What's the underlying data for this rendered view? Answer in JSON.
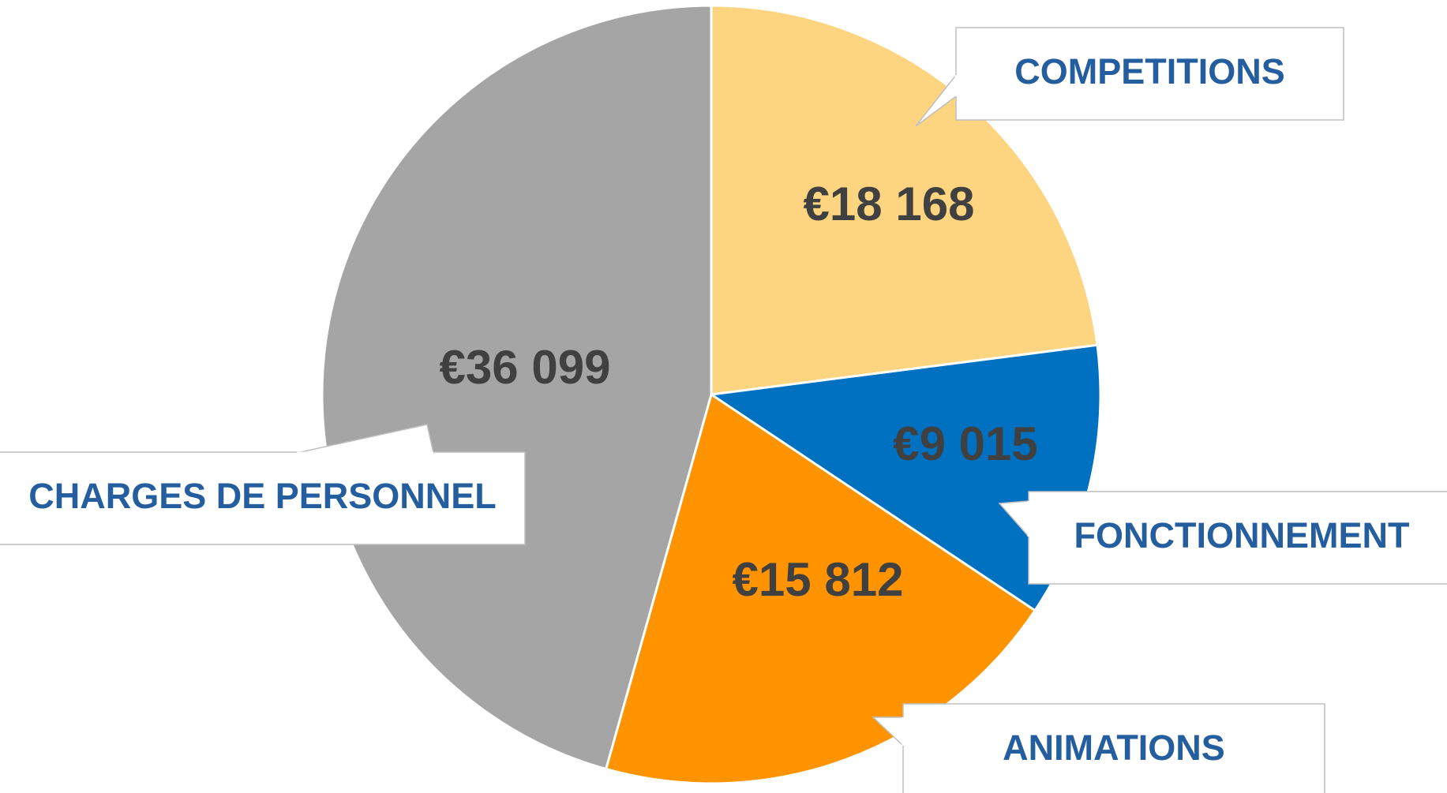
{
  "chart_data": {
    "type": "pie",
    "categories": [
      "COMPETITIONS",
      "FONCTIONNEMENT",
      "ANIMATIONS",
      "CHARGES DE PERSONNEL"
    ],
    "values": [
      18168,
      9015,
      15812,
      36099
    ],
    "value_labels": [
      "€18 168",
      "€9 015",
      "€15 812",
      "€36 099"
    ],
    "colors": [
      "#fdd47f",
      "#0070c0",
      "#ff9300",
      "#a5a5a5"
    ]
  }
}
